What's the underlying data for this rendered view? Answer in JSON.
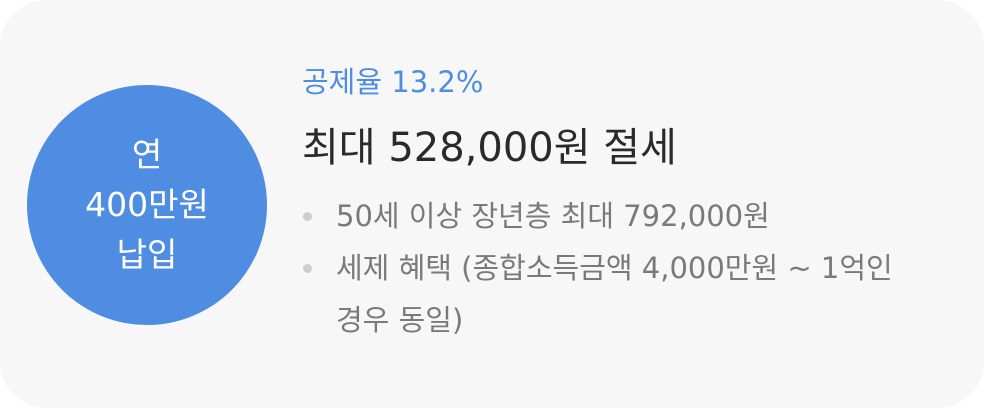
{
  "badge": {
    "line1": "연",
    "line2": "400만원",
    "line3": "납입"
  },
  "rate_label": "공제율 13.2%",
  "headline": "최대 528,000원 절세",
  "bullets": [
    "50세 이상 장년층 최대 792,000원",
    "세제 혜택 (종합소득금액 4,000만원 ~ 1억인 경우 동일)"
  ],
  "colors": {
    "accent": "#4f8de3",
    "card_background": "#f7f7f7",
    "headline_text": "#2a2a2a",
    "bullet_text": "#7a7a7a",
    "bullet_dot": "#cdcdcd"
  }
}
